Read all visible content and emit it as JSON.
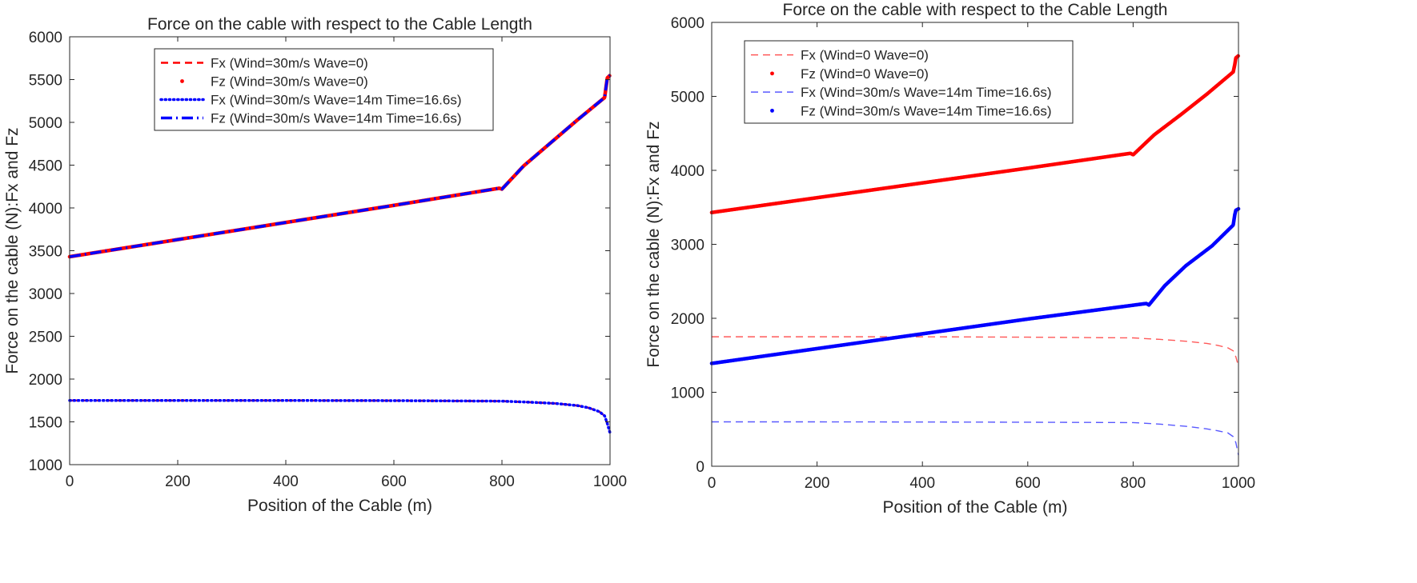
{
  "chart_data": [
    {
      "type": "line",
      "title": "Force on the cable with respect to the Cable Length",
      "xlabel": "Position of the Cable (m)",
      "ylabel": "Force on the cable (N):Fx and Fz",
      "xlim": [
        0,
        1000
      ],
      "ylim": [
        1000,
        6000
      ],
      "xticks": [
        "0",
        "200",
        "400",
        "600",
        "800",
        "1000"
      ],
      "yticks": [
        "1000",
        "1500",
        "2000",
        "2500",
        "3000",
        "3500",
        "4000",
        "4500",
        "5000",
        "5500",
        "6000"
      ],
      "grid": false,
      "legend_position": "top-right",
      "series": [
        {
          "name": "Fx (Wind=30m/s Wave=0)",
          "color": "#ff0000",
          "style": "dashed",
          "x": [
            0,
            200,
            400,
            600,
            800,
            850,
            900,
            940,
            960,
            980,
            990,
            995,
            1000
          ],
          "y": [
            1750,
            1750,
            1750,
            1748,
            1742,
            1730,
            1715,
            1690,
            1665,
            1620,
            1570,
            1480,
            1370
          ]
        },
        {
          "name": "Fz (Wind=30m/s Wave=0)",
          "color": "#ff0000",
          "style": "dots",
          "x": [
            0,
            200,
            400,
            600,
            795,
            800,
            840,
            890,
            940,
            990,
            993,
            995,
            1000
          ],
          "y": [
            3430,
            3630,
            3830,
            4030,
            4230,
            4220,
            4490,
            4760,
            5030,
            5290,
            5430,
            5520,
            5550
          ]
        },
        {
          "name": "Fx (Wind=30m/s Wave=14m Time=16.6s)",
          "color": "#0000ff",
          "style": "dotted",
          "x": [
            0,
            200,
            400,
            600,
            800,
            850,
            900,
            940,
            960,
            980,
            990,
            995,
            1000
          ],
          "y": [
            1750,
            1750,
            1750,
            1748,
            1742,
            1730,
            1715,
            1690,
            1665,
            1620,
            1570,
            1480,
            1370
          ]
        },
        {
          "name": "Fz (Wind=30m/s Wave=14m Time=16.6s)",
          "color": "#0000ff",
          "style": "dashdot",
          "x": [
            0,
            200,
            400,
            600,
            795,
            800,
            840,
            890,
            940,
            990,
            993,
            995,
            1000
          ],
          "y": [
            3430,
            3630,
            3830,
            4030,
            4230,
            4220,
            4490,
            4760,
            5030,
            5290,
            5430,
            5520,
            5550
          ]
        }
      ]
    },
    {
      "type": "line",
      "title": "Force on the cable with respect to the Cable Length",
      "xlabel": "Position of the Cable (m)",
      "ylabel": "Force on the cable (N):Fx and Fz",
      "xlim": [
        0,
        1000
      ],
      "ylim": [
        0,
        6000
      ],
      "xticks": [
        "0",
        "200",
        "400",
        "600",
        "800",
        "1000"
      ],
      "yticks": [
        "0",
        "1000",
        "2000",
        "3000",
        "4000",
        "5000",
        "6000"
      ],
      "grid": false,
      "legend_position": "top-left",
      "series": [
        {
          "name": "Fx (Wind=0 Wave=0)",
          "color": "#ff0000",
          "style": "thin-dashed",
          "x": [
            0,
            200,
            400,
            600,
            800,
            850,
            900,
            940,
            960,
            980,
            990,
            995,
            1000
          ],
          "y": [
            1750,
            1750,
            1750,
            1745,
            1735,
            1715,
            1690,
            1660,
            1635,
            1600,
            1560,
            1480,
            1350
          ]
        },
        {
          "name": "Fz (Wind=0 Wave=0)",
          "color": "#ff0000",
          "style": "dots",
          "x": [
            0,
            200,
            400,
            600,
            795,
            800,
            840,
            890,
            940,
            990,
            993,
            995,
            1000
          ],
          "y": [
            3430,
            3630,
            3830,
            4030,
            4230,
            4210,
            4480,
            4750,
            5030,
            5330,
            5430,
            5520,
            5550
          ]
        },
        {
          "name": "Fx (Wind=30m/s Wave=14m Time=16.6s)",
          "color": "#0000ff",
          "style": "thin-dashed",
          "x": [
            0,
            200,
            400,
            600,
            800,
            850,
            900,
            940,
            960,
            980,
            990,
            995,
            1000
          ],
          "y": [
            600,
            600,
            598,
            595,
            590,
            570,
            540,
            505,
            480,
            450,
            400,
            320,
            150
          ]
        },
        {
          "name": "Fz (Wind=30m/s Wave=14m Time=16.6s)",
          "color": "#0000ff",
          "style": "dots",
          "x": [
            0,
            200,
            400,
            600,
            825,
            830,
            860,
            900,
            950,
            990,
            993,
            995,
            1000
          ],
          "y": [
            1390,
            1590,
            1790,
            1990,
            2200,
            2180,
            2440,
            2710,
            2980,
            3260,
            3400,
            3460,
            3480
          ]
        }
      ]
    }
  ]
}
